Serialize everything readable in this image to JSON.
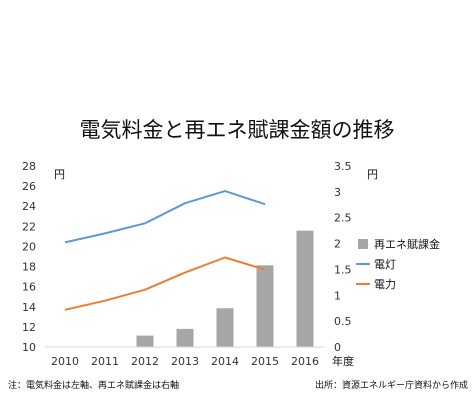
{
  "chart_data": {
    "type": "bar+line",
    "title": "電気料金と再エネ賦課金額の推移",
    "categories": [
      "2010",
      "2011",
      "2012",
      "2013",
      "2014",
      "2015",
      "2016"
    ],
    "xlabel": "年度",
    "ylabel_left": "円",
    "ylabel_right": "円",
    "ylim_left": [
      10,
      28
    ],
    "yticks_left": [
      10,
      12,
      14,
      16,
      18,
      20,
      22,
      24,
      26,
      28
    ],
    "ylim_right": [
      0,
      3.5
    ],
    "yticks_right": [
      "0",
      "0.5",
      "1",
      "1.5",
      "2",
      "2.5",
      "3",
      "3.5"
    ],
    "grid": false,
    "legend_position": "right",
    "series": [
      {
        "name": "再エネ賦課金",
        "kind": "bar",
        "axis": "right",
        "color": "#a6a6a6",
        "values": [
          null,
          null,
          0.22,
          0.35,
          0.75,
          1.58,
          2.25
        ]
      },
      {
        "name": "電灯",
        "kind": "line",
        "axis": "left",
        "color": "#5b9bd5",
        "values": [
          20.4,
          21.3,
          22.3,
          24.3,
          25.5,
          24.2,
          null
        ]
      },
      {
        "name": "電力",
        "kind": "line",
        "axis": "left",
        "color": "#ed7d31",
        "values": [
          13.7,
          14.6,
          15.7,
          17.4,
          18.9,
          17.7,
          null
        ]
      }
    ]
  },
  "notes": {
    "footnote_left": "注：電気料金は左軸、再エネ賦課金は右軸",
    "footnote_right": "出所：資源エネルギー庁資料から作成"
  }
}
